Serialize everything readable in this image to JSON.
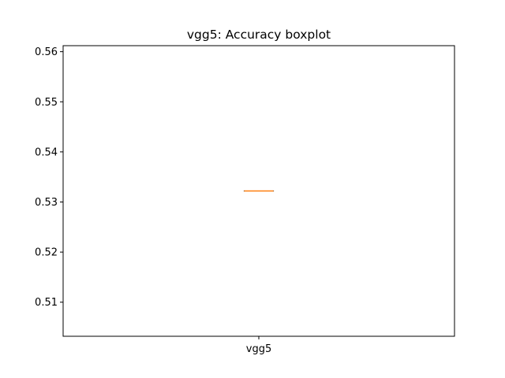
{
  "chart_data": {
    "type": "boxplot",
    "title": "vgg5: Accuracy boxplot",
    "xlabel": "",
    "ylabel": "",
    "categories": [
      "vgg5"
    ],
    "series": [
      {
        "name": "vgg5",
        "min": 0.5322,
        "q1": 0.5322,
        "median": 0.5322,
        "q3": 0.5322,
        "max": 0.5322
      }
    ],
    "ylim": [
      0.5032,
      0.5612
    ],
    "yticks": [
      0.51,
      0.52,
      0.53,
      0.54,
      0.55,
      0.56
    ],
    "ytick_labels": [
      "0.51",
      "0.52",
      "0.53",
      "0.54",
      "0.55",
      "0.56"
    ],
    "grid": false,
    "colors": {
      "box": "#000000",
      "median": "#ff7f0e",
      "axes": "#000000",
      "background": "#ffffff"
    }
  }
}
